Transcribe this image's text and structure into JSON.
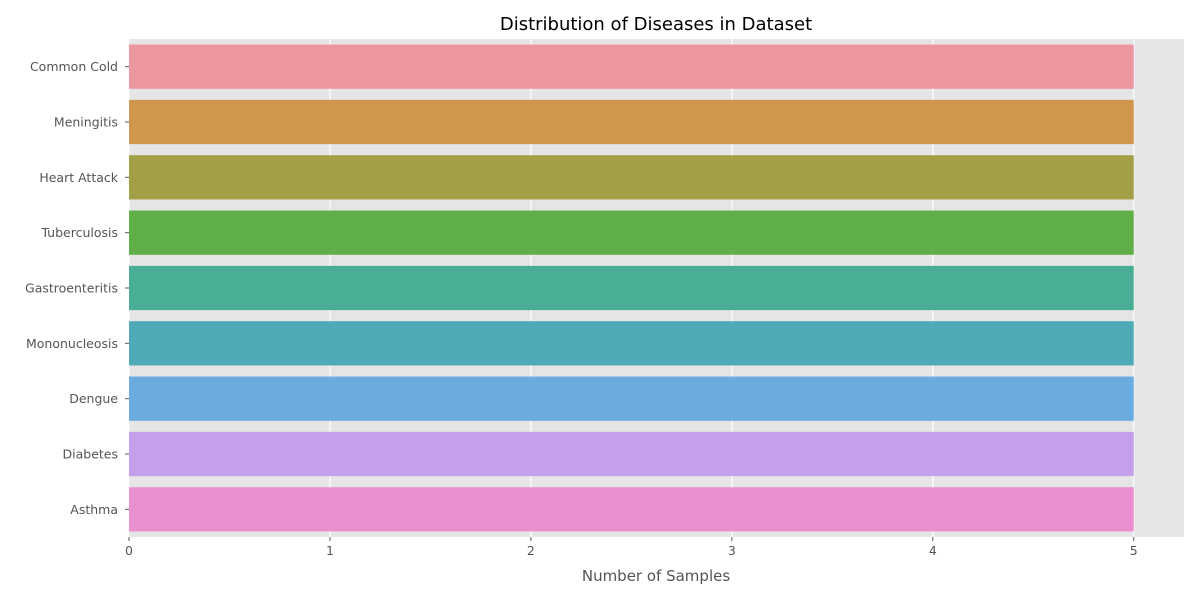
{
  "chart_data": {
    "type": "bar",
    "orientation": "horizontal",
    "title": "Distribution of Diseases in Dataset",
    "xlabel": "Number of Samples",
    "ylabel": "",
    "categories": [
      "Common Cold",
      "Meningitis",
      "Heart Attack",
      "Tuberculosis",
      "Gastroenteritis",
      "Mononucleosis",
      "Dengue",
      "Diabetes",
      "Asthma"
    ],
    "values": [
      5,
      5,
      5,
      5,
      5,
      5,
      5,
      5,
      5
    ],
    "colors": [
      "#ec96a0",
      "#d1964d",
      "#a39f46",
      "#60ae47",
      "#49ae95",
      "#4eaab7",
      "#6aabe0",
      "#c4a0eb",
      "#ea8fd0"
    ],
    "xlim": [
      0,
      5.25
    ],
    "xticks": [
      0,
      1,
      2,
      3,
      4,
      5
    ],
    "grid": true,
    "background": "#e5e5e5",
    "legend": "none"
  }
}
